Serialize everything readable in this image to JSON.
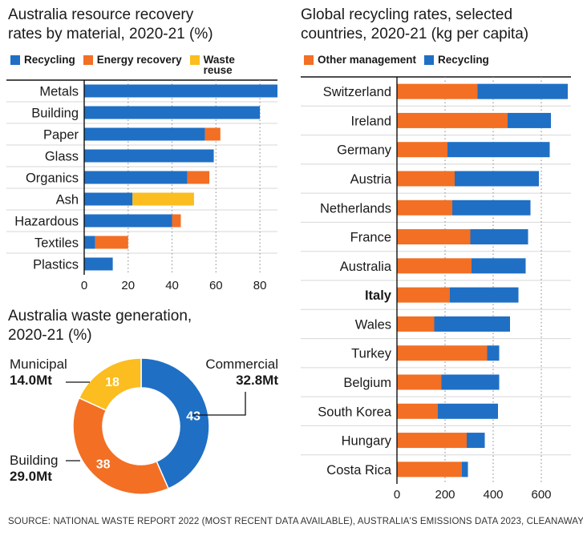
{
  "source": "SOURCE: NATIONAL WASTE REPORT 2022 (MOST RECENT DATA AVAILABLE), AUSTRALIA'S EMISSIONS DATA 2023, CLEANAWAY",
  "colors": {
    "recycling": "#1f6fc5",
    "energy_recovery": "#f26f24",
    "waste_reuse": "#fbbd1f",
    "other_management": "#f26f24",
    "grid": "#9a9a9a"
  },
  "chart_data": [
    {
      "type": "bar",
      "orientation": "horizontal",
      "stacked": true,
      "title": "Australia resource recovery rates by  material, 2020-21 (%)",
      "title_lines": [
        "Australia resource recovery",
        "rates by  material, 2020-21 (%)"
      ],
      "categories": [
        "Metals",
        "Building",
        "Paper",
        "Glass",
        "Organics",
        "Ash",
        "Hazardous",
        "Textiles",
        "Plastics"
      ],
      "series": [
        {
          "name": "Recycling",
          "color": "#1f6fc5",
          "values": [
            88,
            80,
            55,
            59,
            47,
            22,
            40,
            5,
            13
          ]
        },
        {
          "name": "Energy recovery",
          "color": "#f26f24",
          "values": [
            0,
            0,
            7,
            0,
            10,
            0,
            4,
            15,
            0
          ]
        },
        {
          "name": "Waste reuse",
          "color": "#fbbd1f",
          "values": [
            0,
            0,
            0,
            0,
            0,
            28,
            0,
            0,
            0
          ]
        }
      ],
      "legend_labels": [
        "Recycling",
        "Energy recovery",
        "Waste\nreuse"
      ],
      "xlim": [
        0,
        88
      ],
      "xticks": [
        0,
        20,
        40,
        60,
        80
      ],
      "xlabel": "",
      "ylabel": "",
      "grid": true,
      "legend_position": "top"
    },
    {
      "type": "pie",
      "donut": true,
      "title": "Australia waste generation, 2020-21 (%)",
      "title_lines": [
        "Australia waste generation,",
        "2020-21 (%)"
      ],
      "slices": [
        {
          "name": "Commercial",
          "amount": "32.8Mt",
          "value": 43,
          "color": "#1f6fc5"
        },
        {
          "name": "Building",
          "amount": "29.0Mt",
          "value": 38,
          "color": "#f26f24"
        },
        {
          "name": "Municipal",
          "amount": "14.0Mt",
          "value": 18,
          "color": "#fbbd1f"
        }
      ]
    },
    {
      "type": "bar",
      "orientation": "horizontal",
      "stacked": true,
      "title": "Global recycling rates, selected countries, 2020-21 (kg per capita)",
      "title_lines": [
        "Global recycling rates, selected",
        "countries, 2020-21 (kg per capita)"
      ],
      "categories": [
        "Switzerland",
        "Ireland",
        "Germany",
        "Austria",
        "Netherlands",
        "France",
        "Australia",
        "Italy",
        "Wales",
        "Turkey",
        "Belgium",
        "South Korea",
        "Hungary",
        "Costa Rica"
      ],
      "bold_categories": [
        "Italy"
      ],
      "series": [
        {
          "name": "Other management",
          "color": "#f26f24",
          "values": [
            335,
            460,
            210,
            240,
            230,
            305,
            310,
            220,
            155,
            375,
            185,
            170,
            290,
            270
          ]
        },
        {
          "name": "Recycling",
          "color": "#1f6fc5",
          "values": [
            375,
            180,
            425,
            350,
            325,
            240,
            225,
            285,
            315,
            50,
            240,
            250,
            75,
            25
          ]
        }
      ],
      "legend_labels": [
        "Other management",
        "Recycling"
      ],
      "xlim": [
        0,
        710
      ],
      "xticks": [
        0,
        200,
        400,
        600
      ],
      "xlabel": "",
      "ylabel": "",
      "grid": true,
      "legend_position": "top"
    }
  ]
}
